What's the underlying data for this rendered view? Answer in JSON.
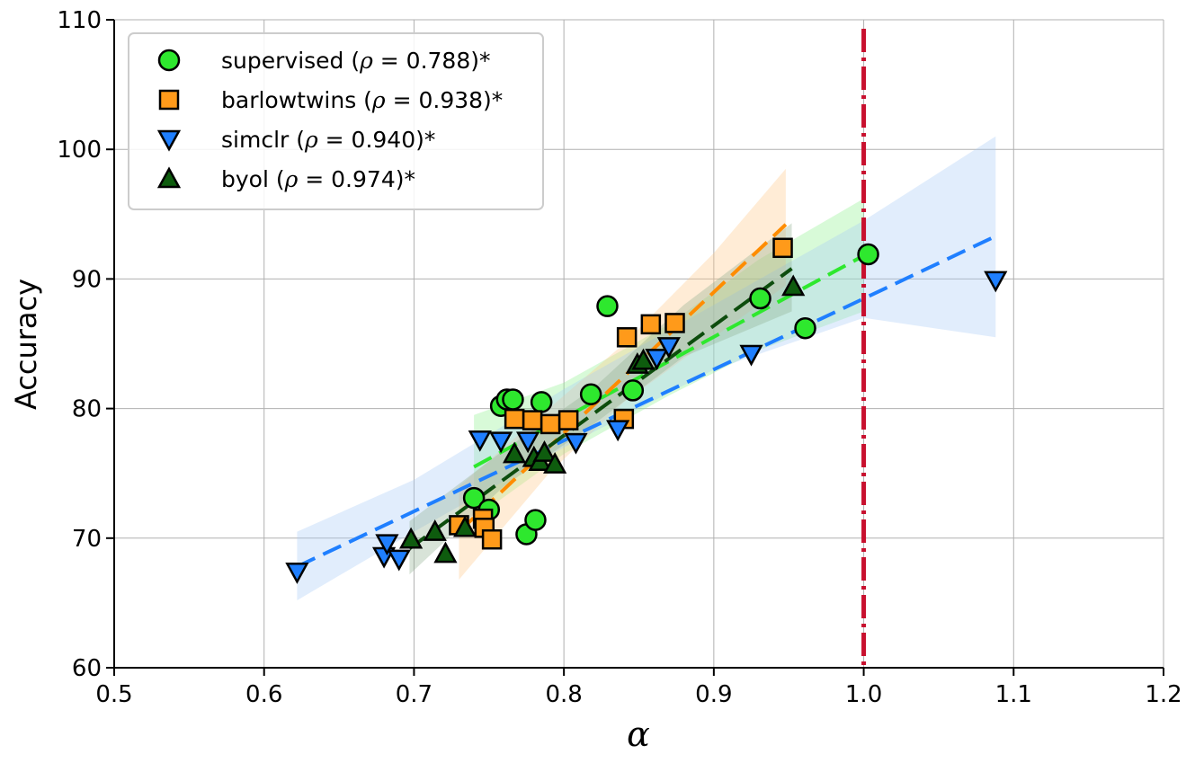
{
  "chart_data": {
    "type": "scatter",
    "xlabel": "α",
    "ylabel": "Accuracy",
    "xlim": [
      0.5,
      1.2
    ],
    "ylim": [
      60,
      110
    ],
    "xticks": [
      0.5,
      0.6,
      0.7,
      0.8,
      0.9,
      1.0,
      1.1,
      1.2
    ],
    "xtick_labels": [
      "0.5",
      "0.6",
      "0.7",
      "0.8",
      "0.9",
      "1.0",
      "1.1",
      "1.2"
    ],
    "yticks": [
      60,
      70,
      80,
      90,
      100,
      110
    ],
    "ytick_labels": [
      "60",
      "70",
      "80",
      "90",
      "100",
      "110"
    ],
    "grid": true,
    "legend_position": "top-left",
    "reference_line": {
      "x": 1.0,
      "color": "#c8102e",
      "style": "dash-dot"
    },
    "series": [
      {
        "name": "supervised",
        "rho": "0.788",
        "legend_prefix": "supervised (",
        "legend_suffix": " = 0.788)*",
        "marker": "circle",
        "color": "#2ee82e",
        "fit_color": "#2ee82e",
        "band_color": "#8ff08f",
        "fit": {
          "x": [
            0.74,
            1.0
          ],
          "y": [
            75.5,
            91.8
          ]
        },
        "band": {
          "x": [
            0.74,
            0.8,
            0.87,
            0.93,
            1.0
          ],
          "lower": [
            71.5,
            76.5,
            81.0,
            84.5,
            87.5
          ],
          "upper": [
            79.5,
            82.0,
            86.5,
            91.5,
            96.2
          ]
        },
        "points": [
          {
            "x": 0.758,
            "y": 80.2
          },
          {
            "x": 0.762,
            "y": 80.7
          },
          {
            "x": 0.766,
            "y": 80.7
          },
          {
            "x": 0.785,
            "y": 80.5
          },
          {
            "x": 0.818,
            "y": 81.1
          },
          {
            "x": 0.829,
            "y": 87.9
          },
          {
            "x": 0.846,
            "y": 81.4
          },
          {
            "x": 0.931,
            "y": 88.5
          },
          {
            "x": 0.961,
            "y": 86.2
          },
          {
            "x": 1.003,
            "y": 91.9
          },
          {
            "x": 0.74,
            "y": 73.1
          },
          {
            "x": 0.75,
            "y": 72.2
          },
          {
            "x": 0.775,
            "y": 70.3
          },
          {
            "x": 0.781,
            "y": 71.4
          }
        ]
      },
      {
        "name": "barlowtwins",
        "rho": "0.938",
        "legend_prefix": "barlowtwins (",
        "legend_suffix": " = 0.938)*",
        "marker": "square",
        "color": "#ff9a1a",
        "fit_color": "#ff8c00",
        "band_color": "#ffc98a",
        "fit": {
          "x": [
            0.73,
            0.948
          ],
          "y": [
            70.5,
            94.2
          ]
        },
        "band": {
          "x": [
            0.73,
            0.79,
            0.84,
            0.9,
            0.948
          ],
          "lower": [
            66.8,
            75.0,
            80.5,
            85.5,
            89.5
          ],
          "upper": [
            74.0,
            80.0,
            85.0,
            92.0,
            98.5
          ]
        },
        "points": [
          {
            "x": 0.73,
            "y": 71.0
          },
          {
            "x": 0.746,
            "y": 71.5
          },
          {
            "x": 0.747,
            "y": 70.8
          },
          {
            "x": 0.752,
            "y": 69.9
          },
          {
            "x": 0.767,
            "y": 79.2
          },
          {
            "x": 0.779,
            "y": 79.1
          },
          {
            "x": 0.791,
            "y": 78.8
          },
          {
            "x": 0.803,
            "y": 79.1
          },
          {
            "x": 0.84,
            "y": 79.2
          },
          {
            "x": 0.842,
            "y": 85.5
          },
          {
            "x": 0.858,
            "y": 86.5
          },
          {
            "x": 0.874,
            "y": 86.6
          },
          {
            "x": 0.946,
            "y": 92.4
          }
        ]
      },
      {
        "name": "simclr",
        "rho": "0.940",
        "legend_prefix": "simclr (",
        "legend_suffix": " = 0.940)*",
        "marker": "triangle-down",
        "color": "#1f7fff",
        "fit_color": "#1f7fff",
        "band_color": "#a8ccf5",
        "fit": {
          "x": [
            0.622,
            1.088
          ],
          "y": [
            67.8,
            93.3
          ]
        },
        "band": {
          "x": [
            0.622,
            0.7,
            0.8,
            0.9,
            1.0,
            1.088
          ],
          "lower": [
            65.2,
            70.5,
            77.0,
            83.0,
            87.0,
            85.5
          ],
          "upper": [
            70.5,
            74.5,
            81.5,
            88.0,
            94.5,
            101.0
          ]
        },
        "points": [
          {
            "x": 0.622,
            "y": 67.4
          },
          {
            "x": 0.68,
            "y": 68.6
          },
          {
            "x": 0.682,
            "y": 69.6
          },
          {
            "x": 0.69,
            "y": 68.4
          },
          {
            "x": 0.744,
            "y": 77.6
          },
          {
            "x": 0.758,
            "y": 77.5
          },
          {
            "x": 0.776,
            "y": 77.5
          },
          {
            "x": 0.808,
            "y": 77.4
          },
          {
            "x": 0.836,
            "y": 78.4
          },
          {
            "x": 0.862,
            "y": 83.9
          },
          {
            "x": 0.87,
            "y": 84.8
          },
          {
            "x": 0.925,
            "y": 84.2
          },
          {
            "x": 1.088,
            "y": 89.9
          }
        ]
      },
      {
        "name": "byol",
        "rho": "0.974",
        "legend_prefix": "byol (",
        "legend_suffix": " = 0.974)*",
        "marker": "triangle-up",
        "color": "#0e5c0e",
        "fit_color": "#0d4d0d",
        "band_color": "#8fb08f",
        "fit": {
          "x": [
            0.697,
            0.952
          ],
          "y": [
            69.2,
            90.8
          ]
        },
        "band": {
          "x": [
            0.697,
            0.76,
            0.82,
            0.88,
            0.952
          ],
          "lower": [
            67.2,
            74.0,
            78.8,
            84.0,
            87.5
          ],
          "upper": [
            71.3,
            76.8,
            81.6,
            88.0,
            94.3
          ]
        },
        "points": [
          {
            "x": 0.698,
            "y": 69.9
          },
          {
            "x": 0.714,
            "y": 70.5
          },
          {
            "x": 0.721,
            "y": 68.8
          },
          {
            "x": 0.734,
            "y": 70.8
          },
          {
            "x": 0.767,
            "y": 76.5
          },
          {
            "x": 0.78,
            "y": 76.2
          },
          {
            "x": 0.784,
            "y": 75.9
          },
          {
            "x": 0.787,
            "y": 76.6
          },
          {
            "x": 0.794,
            "y": 75.7
          },
          {
            "x": 0.849,
            "y": 83.4
          },
          {
            "x": 0.853,
            "y": 83.7
          },
          {
            "x": 0.953,
            "y": 89.4
          }
        ]
      }
    ]
  }
}
